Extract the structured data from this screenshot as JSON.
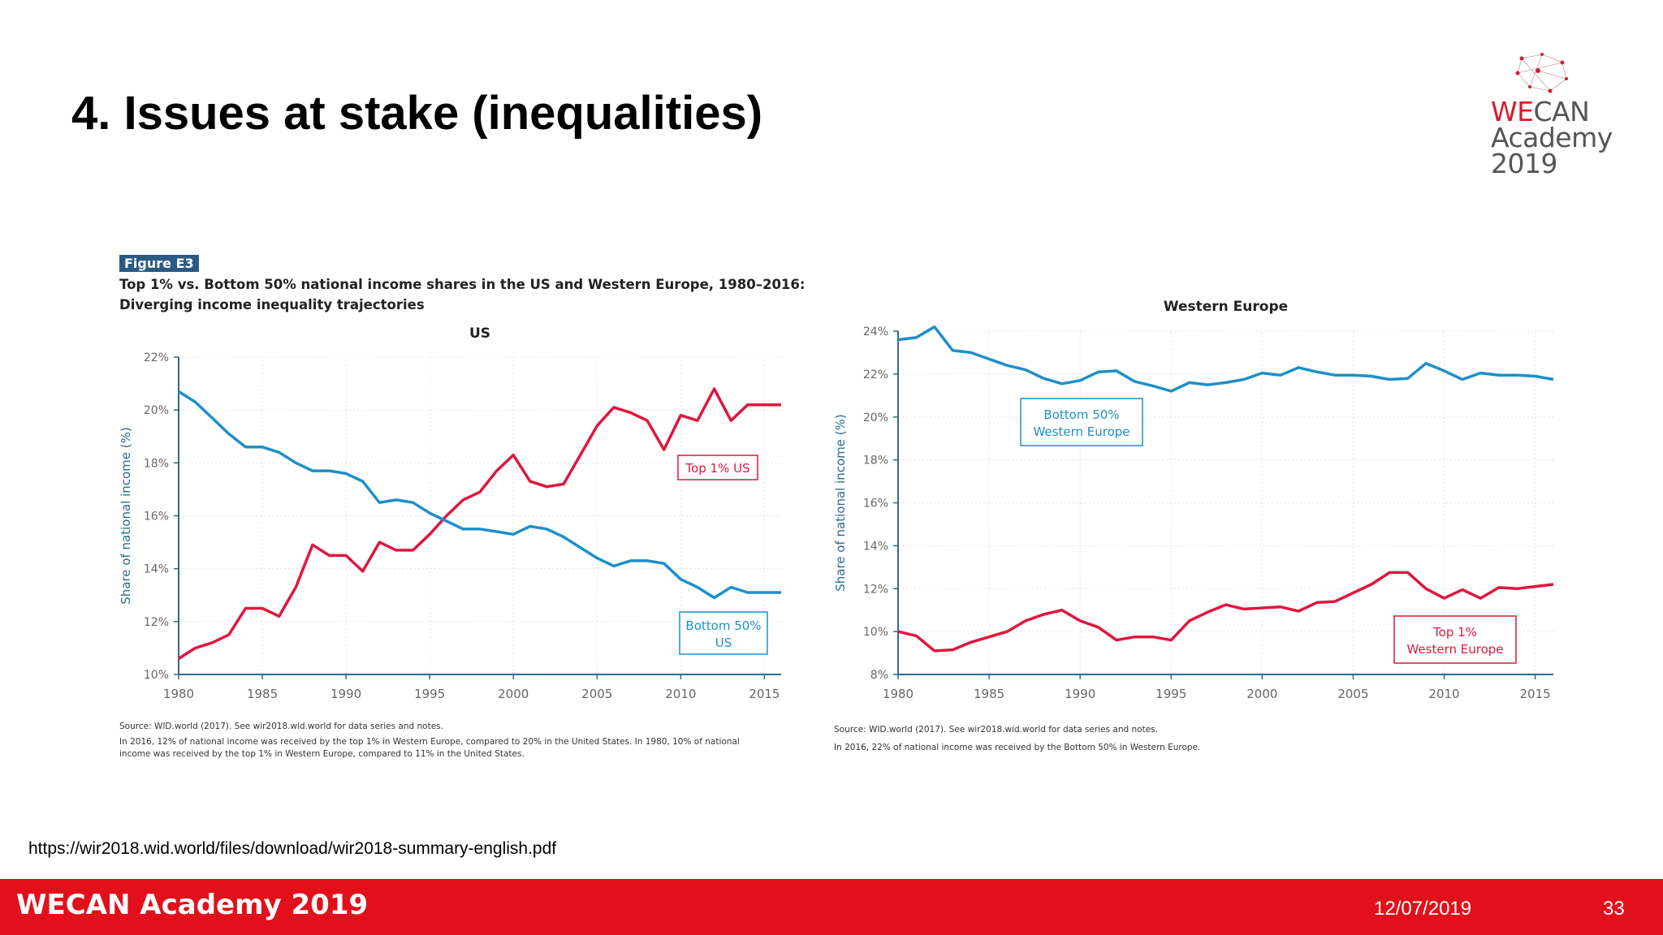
{
  "slide": {
    "title": "4. Issues at stake (inequalities)",
    "url": "https://wir2018.wid.world/files/download/wir2018-summary-english.pdf",
    "footer_brand": "WECAN Academy 2019",
    "footer_date": "12/07/2019",
    "page_number": "33"
  },
  "logo": {
    "line1_accent": "WE",
    "line1_rest": "CAN",
    "line2": "Academy",
    "line3": "2019"
  },
  "figure": {
    "tag": "Figure E3",
    "title_line1": "Top 1% vs. Bottom 50% national income shares in the US and Western Europe, 1980–2016:",
    "title_line2": "Diverging income inequality trajectories"
  },
  "colors": {
    "top1": "#e0163f",
    "bottom50": "#1e8fc8",
    "axis": "#2d6a8e",
    "footer": "#e2101a"
  },
  "chart_data": [
    {
      "type": "line",
      "title": "US",
      "xlabel": "",
      "ylabel": "Share of national income (%)",
      "xlim": [
        1980,
        2016
      ],
      "ylim": [
        10,
        22
      ],
      "xticks": [
        1980,
        1985,
        1990,
        1995,
        2000,
        2005,
        2010,
        2015
      ],
      "yticks": [
        10,
        12,
        14,
        16,
        18,
        20,
        22
      ],
      "ytick_labels": [
        "10%",
        "12%",
        "14%",
        "16%",
        "18%",
        "20%",
        "22%"
      ],
      "grid": true,
      "x": [
        1980,
        1981,
        1982,
        1983,
        1984,
        1985,
        1986,
        1987,
        1988,
        1989,
        1990,
        1991,
        1992,
        1993,
        1994,
        1995,
        1996,
        1997,
        1998,
        1999,
        2000,
        2001,
        2002,
        2003,
        2004,
        2005,
        2006,
        2007,
        2008,
        2009,
        2010,
        2011,
        2012,
        2013,
        2014,
        2015,
        2016
      ],
      "series": [
        {
          "name": "Top 1% US",
          "color": "#e0163f",
          "values": [
            10.6,
            11.0,
            11.2,
            11.5,
            12.5,
            12.5,
            12.2,
            13.3,
            14.9,
            14.5,
            14.5,
            13.9,
            15.0,
            14.7,
            14.7,
            15.3,
            16.0,
            16.6,
            16.9,
            17.7,
            18.3,
            17.3,
            17.1,
            17.2,
            18.3,
            19.4,
            20.1,
            19.9,
            19.6,
            18.5,
            19.8,
            19.6,
            20.8,
            19.6,
            20.2,
            20.2,
            20.2
          ]
        },
        {
          "name": "Bottom 50% US",
          "color": "#1e8fc8",
          "values": [
            20.7,
            20.3,
            19.7,
            19.1,
            18.6,
            18.6,
            18.4,
            18.0,
            17.7,
            17.7,
            17.6,
            17.3,
            16.5,
            16.6,
            16.5,
            16.1,
            15.8,
            15.5,
            15.5,
            15.4,
            15.3,
            15.6,
            15.5,
            15.2,
            14.8,
            14.4,
            14.1,
            14.3,
            14.3,
            14.2,
            13.6,
            13.3,
            12.9,
            13.3,
            13.1,
            13.1,
            13.1
          ]
        }
      ],
      "annotations": [
        {
          "text": "Top 1% US"
        },
        {
          "text": "Bottom 50%",
          "text2": "US"
        }
      ]
    },
    {
      "type": "line",
      "title": "Western Europe",
      "xlabel": "",
      "ylabel": "Share of national income (%)",
      "xlim": [
        1980,
        2016
      ],
      "ylim": [
        8,
        24
      ],
      "xticks": [
        1980,
        1985,
        1990,
        1995,
        2000,
        2005,
        2010,
        2015
      ],
      "yticks": [
        8,
        10,
        12,
        14,
        16,
        18,
        20,
        22,
        24
      ],
      "ytick_labels": [
        "8%",
        "10%",
        "12%",
        "14%",
        "16%",
        "18%",
        "20%",
        "22%",
        "24%"
      ],
      "grid": true,
      "x": [
        1980,
        1981,
        1982,
        1983,
        1984,
        1985,
        1986,
        1987,
        1988,
        1989,
        1990,
        1991,
        1992,
        1993,
        1994,
        1995,
        1996,
        1997,
        1998,
        1999,
        2000,
        2001,
        2002,
        2003,
        2004,
        2005,
        2006,
        2007,
        2008,
        2009,
        2010,
        2011,
        2012,
        2013,
        2014,
        2015,
        2016
      ],
      "series": [
        {
          "name": "Top 1% Western Europe",
          "color": "#e0163f",
          "values": [
            10.0,
            9.8,
            9.1,
            9.15,
            9.5,
            9.75,
            10.0,
            10.5,
            10.8,
            11.0,
            10.5,
            10.2,
            9.6,
            9.75,
            9.75,
            9.6,
            10.5,
            10.9,
            11.25,
            11.05,
            11.1,
            11.15,
            10.95,
            11.35,
            11.4,
            11.8,
            12.2,
            12.75,
            12.75,
            12.0,
            11.55,
            11.95,
            11.55,
            12.05,
            12.0,
            12.1,
            12.2
          ]
        },
        {
          "name": "Bottom 50% Western Europe",
          "color": "#1e8fc8",
          "values": [
            23.6,
            23.7,
            24.2,
            23.1,
            23.0,
            22.7,
            22.4,
            22.2,
            21.8,
            21.55,
            21.7,
            22.1,
            22.15,
            21.65,
            21.45,
            21.2,
            21.6,
            21.5,
            21.6,
            21.75,
            22.05,
            21.95,
            22.3,
            22.1,
            21.95,
            21.95,
            21.9,
            21.75,
            21.8,
            22.5,
            22.15,
            21.75,
            22.05,
            21.95,
            21.95,
            21.9,
            21.75
          ]
        }
      ],
      "annotations": [
        {
          "text": "Bottom 50%",
          "text2": "Western Europe"
        },
        {
          "text": "Top 1%",
          "text2": "Western Europe"
        }
      ]
    }
  ],
  "notes": {
    "us_source": "Source: WID.world (2017). See wir2018.wid.world for data series and notes.",
    "us_note_line1": "In 2016, 12% of national income was received by the top 1% in Western Europe, compared to 20% in the United States. In 1980, 10% of national",
    "us_note_line2": "income was received by the top 1% in Western Europe, compared to 11% in the United States.",
    "eu_source": "Source: WID.world (2017). See wir2018.wid.world for data series and notes.",
    "eu_note": "In 2016, 22% of national income was received by the Bottom 50% in Western Europe."
  }
}
